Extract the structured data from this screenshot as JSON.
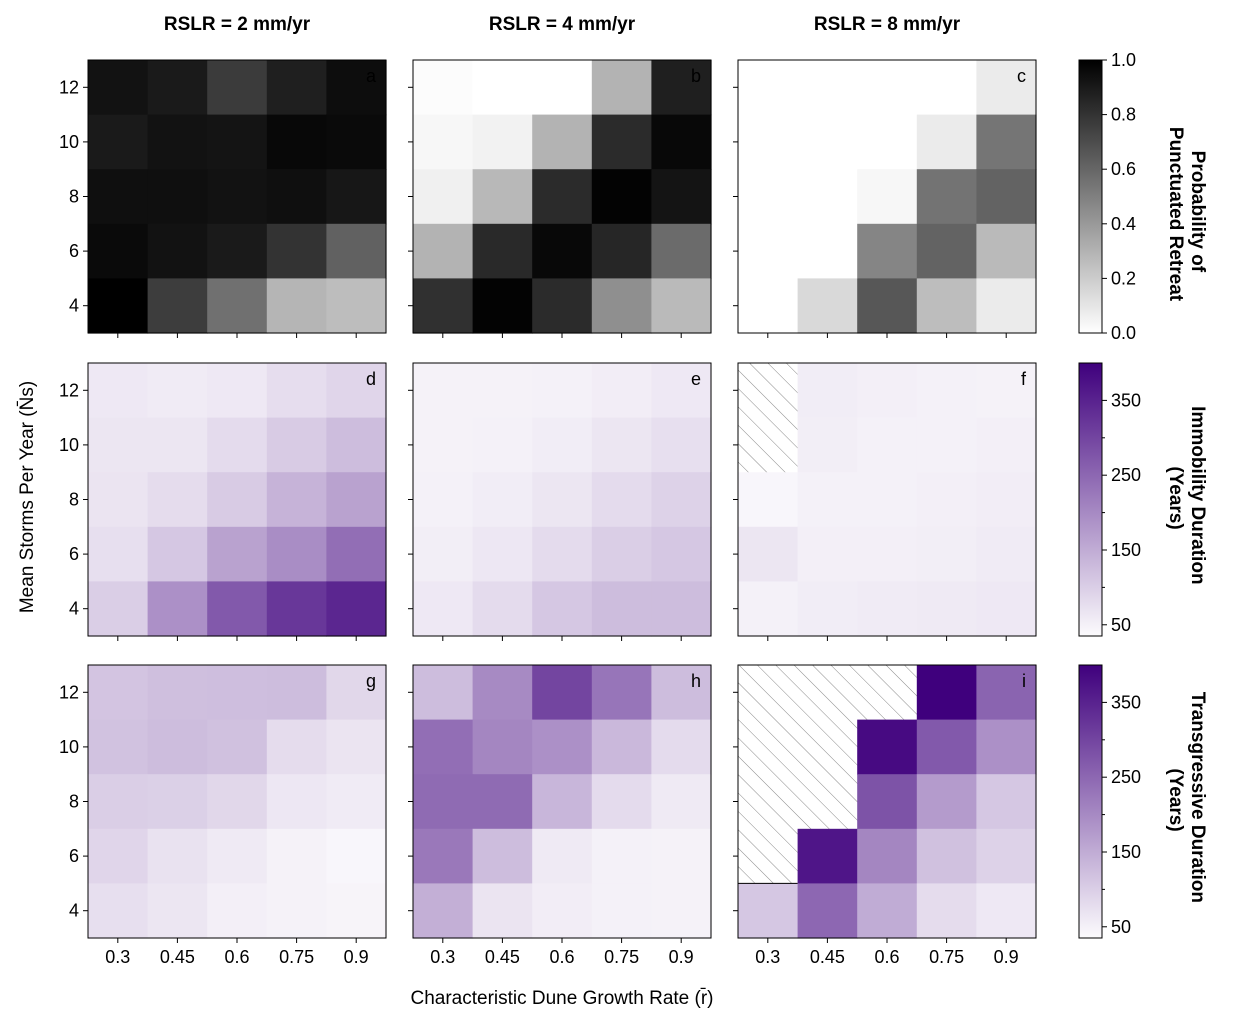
{
  "figure": {
    "x_label": "Characteristic Dune Growth Rate (r̄)",
    "y_label": "Mean Storms Per Year (N̄s)",
    "columns": [
      "RSLR = 2 mm/yr",
      "RSLR = 4 mm/yr",
      "RSLR = 8 mm/yr"
    ],
    "colorbars": [
      {
        "name": "probability",
        "label_lines": [
          "Probability of",
          "Punctuated Retreat"
        ],
        "ticks": [
          "0.0",
          "0.2",
          "0.4",
          "0.6",
          "0.8",
          "1.0"
        ],
        "range": [
          0,
          1
        ],
        "colors": [
          "#ffffff",
          "#000000"
        ]
      },
      {
        "name": "immobility",
        "label_lines": [
          "Immobility Duration",
          "(Years)"
        ],
        "ticks": [
          "50",
          "150",
          "250",
          "350"
        ],
        "range": [
          35,
          400
        ],
        "colors": [
          "#fcfbfd",
          "#3f007d"
        ]
      },
      {
        "name": "transgressive",
        "label_lines": [
          "Transgressive Duration",
          "(Years)"
        ],
        "ticks": [
          "50",
          "150",
          "250",
          "350"
        ],
        "range": [
          35,
          400
        ],
        "colors": [
          "#fcfbfd",
          "#3f007d"
        ]
      }
    ]
  },
  "chart_data": {
    "type": "heatmap",
    "x_categories": [
      "0.3",
      "0.45",
      "0.6",
      "0.75",
      "0.9"
    ],
    "y_categories": [
      "4",
      "6",
      "8",
      "10",
      "12"
    ],
    "y_ticks": [
      "4",
      "6",
      "8",
      "10",
      "12"
    ],
    "rows_order": "top row = 12 storms/yr, bottom row = 4 storms/yr",
    "panels": [
      {
        "label": "a",
        "row": 0,
        "col": 0,
        "scale": "probability",
        "values": [
          [
            0.93,
            0.9,
            0.77,
            0.88,
            0.95
          ],
          [
            0.9,
            0.93,
            0.92,
            0.97,
            0.96
          ],
          [
            0.94,
            0.94,
            0.93,
            0.94,
            0.91
          ],
          [
            0.96,
            0.93,
            0.9,
            0.8,
            0.62
          ],
          [
            1.0,
            0.76,
            0.56,
            0.29,
            0.26
          ]
        ]
      },
      {
        "label": "b",
        "row": 0,
        "col": 1,
        "scale": "probability",
        "values": [
          [
            0.01,
            0.0,
            0.0,
            0.3,
            0.88
          ],
          [
            0.03,
            0.05,
            0.3,
            0.83,
            0.97
          ],
          [
            0.06,
            0.28,
            0.83,
            0.99,
            0.92
          ],
          [
            0.3,
            0.84,
            0.97,
            0.85,
            0.58
          ],
          [
            0.81,
            0.99,
            0.83,
            0.44,
            0.27
          ]
        ]
      },
      {
        "label": "c",
        "row": 0,
        "col": 2,
        "scale": "probability",
        "values": [
          [
            0.0,
            0.0,
            0.0,
            0.0,
            0.08
          ],
          [
            0.0,
            0.0,
            0.0,
            0.08,
            0.54
          ],
          [
            0.0,
            0.0,
            0.03,
            0.55,
            0.61
          ],
          [
            0.0,
            0.0,
            0.48,
            0.61,
            0.27
          ],
          [
            0.0,
            0.15,
            0.66,
            0.26,
            0.08
          ]
        ]
      },
      {
        "label": "d",
        "row": 1,
        "col": 0,
        "scale": "immobility",
        "values": [
          [
            62,
            58,
            62,
            78,
            90
          ],
          [
            66,
            65,
            82,
            105,
            125
          ],
          [
            68,
            80,
            105,
            140,
            165
          ],
          [
            76,
            110,
            165,
            195,
            240
          ],
          [
            100,
            190,
            270,
            320,
            345
          ]
        ]
      },
      {
        "label": "e",
        "row": 1,
        "col": 1,
        "scale": "immobility",
        "values": [
          [
            48,
            48,
            50,
            55,
            62
          ],
          [
            48,
            50,
            56,
            66,
            76
          ],
          [
            50,
            56,
            66,
            82,
            95
          ],
          [
            54,
            64,
            82,
            100,
            110
          ],
          [
            62,
            82,
            110,
            125,
            125
          ]
        ]
      },
      {
        "label": "f",
        "row": 1,
        "col": 2,
        "scale": "immobility",
        "values": [
          [
            null,
            56,
            52,
            50,
            48
          ],
          [
            null,
            54,
            50,
            50,
            52
          ],
          [
            42,
            50,
            50,
            52,
            55
          ],
          [
            65,
            52,
            52,
            54,
            58
          ],
          [
            50,
            56,
            58,
            60,
            62
          ]
        ]
      },
      {
        "label": "g",
        "row": 2,
        "col": 0,
        "scale": "transgressive",
        "values": [
          [
            115,
            122,
            124,
            125,
            88
          ],
          [
            118,
            125,
            120,
            80,
            68
          ],
          [
            100,
            98,
            88,
            64,
            58
          ],
          [
            90,
            72,
            60,
            48,
            42
          ],
          [
            76,
            66,
            52,
            48,
            45
          ]
        ]
      },
      {
        "label": "h",
        "row": 2,
        "col": 1,
        "scale": "transgressive",
        "values": [
          [
            125,
            200,
            300,
            230,
            125
          ],
          [
            240,
            205,
            190,
            132,
            82
          ],
          [
            245,
            245,
            135,
            82,
            60
          ],
          [
            225,
            125,
            60,
            50,
            48
          ],
          [
            145,
            68,
            55,
            50,
            48
          ]
        ]
      },
      {
        "label": "i",
        "row": 2,
        "col": 2,
        "scale": "transgressive",
        "values": [
          [
            null,
            null,
            null,
            400,
            255
          ],
          [
            null,
            null,
            385,
            270,
            190
          ],
          [
            null,
            null,
            280,
            175,
            110
          ],
          [
            null,
            370,
            205,
            120,
            95
          ],
          [
            110,
            250,
            150,
            80,
            62
          ]
        ]
      }
    ]
  }
}
